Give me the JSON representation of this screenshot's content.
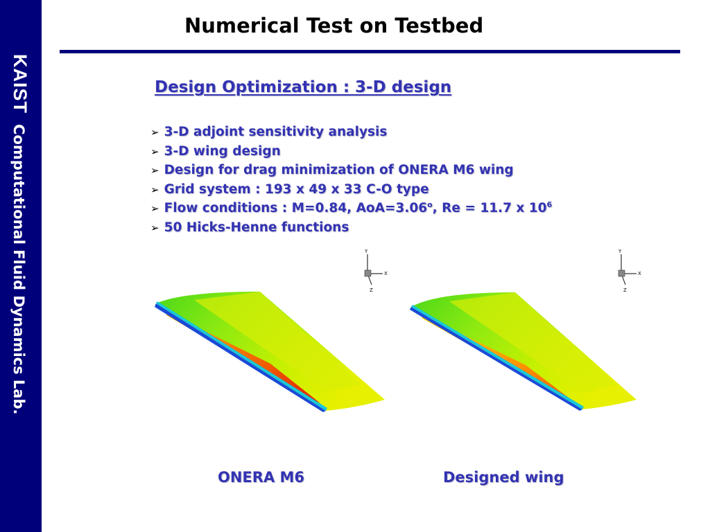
{
  "sidebar": {
    "org": "KAIST",
    "lab": "Computational Fluid Dynamics Lab."
  },
  "title": "Numerical Test on Testbed",
  "subtitle": "Design Optimization : 3-D design",
  "bullets": [
    {
      "text": "3-D adjoint sensitivity analysis"
    },
    {
      "text": "3-D wing design"
    },
    {
      "text": "Design for drag minimization of ONERA M6 wing"
    },
    {
      "text": "Grid system : 193 x 49 x 33 C-O type"
    },
    {
      "text": "Flow conditions : M=0.84, AoA=3.06",
      "degree": "o",
      "mid": ", Re = 11.7 x 10",
      "exponent": "6"
    },
    {
      "text": "50 Hicks-Henne functions"
    }
  ],
  "axes_labels": {
    "y": "Y",
    "x": "X",
    "z": "Z"
  },
  "figures": [
    {
      "caption": "ONERA M6"
    },
    {
      "caption": "Designed wing"
    }
  ],
  "colors": {
    "sidebar": "#00007a",
    "accent_text": "#3333b3",
    "rule": "#00007a"
  }
}
